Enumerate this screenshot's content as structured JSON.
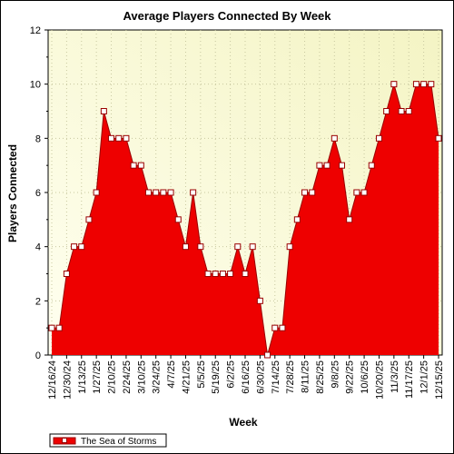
{
  "colors": {
    "fill": "#ee0000",
    "line": "#990000",
    "plot_bg_from": "#fffff0",
    "plot_bg_to": "#f4f4c4",
    "grid": "#c8c8a0"
  },
  "chart_data": {
    "type": "area",
    "title": "Average Players Connected By Week",
    "xlabel": "Week",
    "ylabel": "Players Connected",
    "ylim": [
      0,
      12
    ],
    "yticks": [
      0,
      2,
      4,
      6,
      8,
      10,
      12
    ],
    "xticklabels": [
      "12/16/24",
      "12/30/24",
      "1/13/25",
      "1/27/25",
      "2/10/25",
      "2/24/25",
      "3/10/25",
      "3/24/25",
      "4/7/25",
      "4/21/25",
      "5/5/25",
      "5/19/25",
      "6/2/25",
      "6/16/25",
      "6/30/25",
      "7/14/25",
      "7/28/25",
      "8/11/25",
      "8/25/25",
      "9/8/25",
      "9/22/25",
      "10/6/25",
      "10/20/25",
      "11/3/25",
      "11/17/25",
      "12/1/25",
      "12/15/25"
    ],
    "grid": true,
    "legend_position": "bottom-left",
    "series": [
      {
        "name": "The Sea of Storms",
        "values": [
          1,
          1,
          3,
          4,
          4,
          5,
          6,
          9,
          8,
          8,
          8,
          7,
          7,
          6,
          6,
          6,
          6,
          5,
          4,
          6,
          4,
          3,
          3,
          3,
          3,
          4,
          3,
          4,
          2,
          0,
          1,
          1,
          4,
          5,
          6,
          6,
          7,
          7,
          8,
          7,
          5,
          6,
          6,
          7,
          8,
          9,
          10,
          9,
          9,
          10,
          10,
          10,
          8
        ]
      }
    ]
  }
}
